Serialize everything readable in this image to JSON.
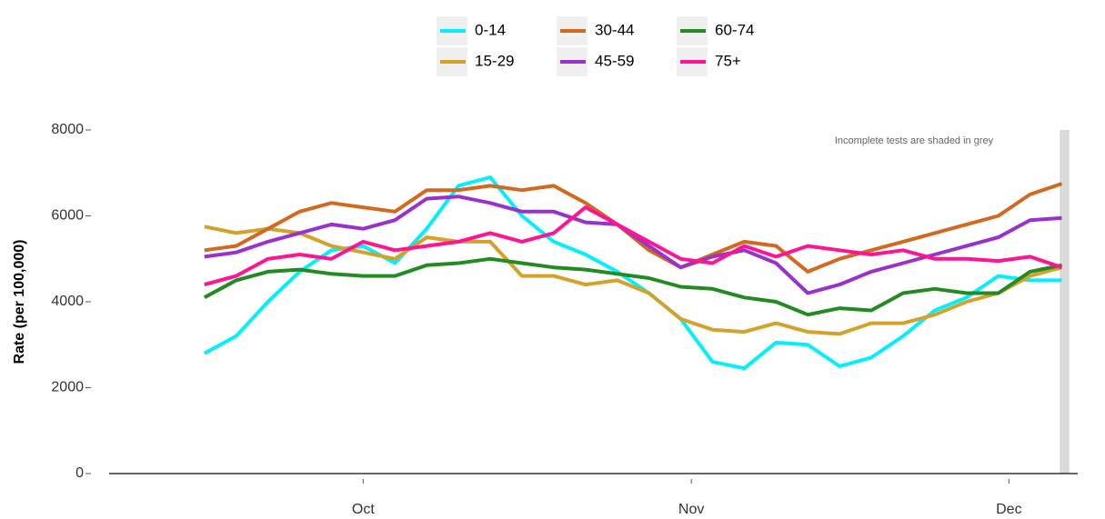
{
  "chart_data": {
    "type": "line",
    "y_label": "Rate (per 100,000)",
    "annotation": "Incomplete tests are shaded in grey",
    "legend": "top",
    "grid": false,
    "shaded_x": [
      340.8,
      341.7
    ],
    "x": [
      260,
      263,
      266,
      269,
      272,
      275,
      278,
      281,
      284,
      287,
      290,
      293,
      296,
      299,
      302,
      305,
      308,
      311,
      314,
      317,
      320,
      323,
      326,
      329,
      332,
      335,
      338,
      341
    ],
    "xlim": [
      251,
      342.5
    ],
    "xticks": [
      {
        "value": 275,
        "label": "Oct"
      },
      {
        "value": 306,
        "label": "Nov"
      },
      {
        "value": 336,
        "label": "Dec"
      }
    ],
    "ylim": [
      0,
      8000
    ],
    "yticks": [
      0,
      2000,
      4000,
      6000,
      8000
    ],
    "series": [
      {
        "name": "0-14",
        "color": "#00f0ff",
        "values": [
          2800,
          3200,
          4000,
          4700,
          5200,
          5300,
          4900,
          5700,
          6700,
          6900,
          6000,
          5400,
          5100,
          4700,
          4200,
          3600,
          2600,
          2450,
          3050,
          3000,
          2500,
          2700,
          3200,
          3800,
          4100,
          4600,
          4500,
          4500
        ]
      },
      {
        "name": "15-29",
        "color": "#d4a22a",
        "values": [
          5750,
          5600,
          5700,
          5600,
          5300,
          5150,
          5000,
          5500,
          5400,
          5400,
          4600,
          4600,
          4400,
          4500,
          4200,
          3600,
          3350,
          3300,
          3500,
          3300,
          3250,
          3500,
          3500,
          3700,
          4000,
          4200,
          4600,
          4800
        ]
      },
      {
        "name": "30-44",
        "color": "#d2691e",
        "values": [
          5200,
          5300,
          5700,
          6100,
          6300,
          6200,
          6100,
          6600,
          6600,
          6700,
          6600,
          6700,
          6300,
          5800,
          5200,
          4800,
          5100,
          5400,
          5300,
          4700,
          5000,
          5200,
          5400,
          5600,
          5800,
          6000,
          6500,
          6750
        ]
      },
      {
        "name": "45-59",
        "color": "#9932cc",
        "values": [
          5050,
          5150,
          5400,
          5600,
          5800,
          5700,
          5900,
          6400,
          6450,
          6300,
          6100,
          6100,
          5850,
          5800,
          5300,
          4800,
          5050,
          5200,
          4900,
          4200,
          4400,
          4700,
          4900,
          5100,
          5300,
          5500,
          5900,
          5950
        ]
      },
      {
        "name": "60-74",
        "color": "#228b22",
        "values": [
          4100,
          4500,
          4700,
          4750,
          4650,
          4600,
          4600,
          4850,
          4900,
          5000,
          4900,
          4800,
          4750,
          4650,
          4550,
          4350,
          4300,
          4100,
          4000,
          3700,
          3850,
          3800,
          4200,
          4300,
          4200,
          4200,
          4700,
          4850
        ]
      },
      {
        "name": "75+",
        "color": "#ff1493",
        "values": [
          4400,
          4600,
          5000,
          5100,
          5000,
          5400,
          5200,
          5300,
          5400,
          5600,
          5400,
          5600,
          6200,
          5800,
          5400,
          5000,
          4900,
          5300,
          5050,
          5300,
          5200,
          5100,
          5200,
          5000,
          5000,
          4950,
          5050,
          4800
        ]
      }
    ]
  }
}
